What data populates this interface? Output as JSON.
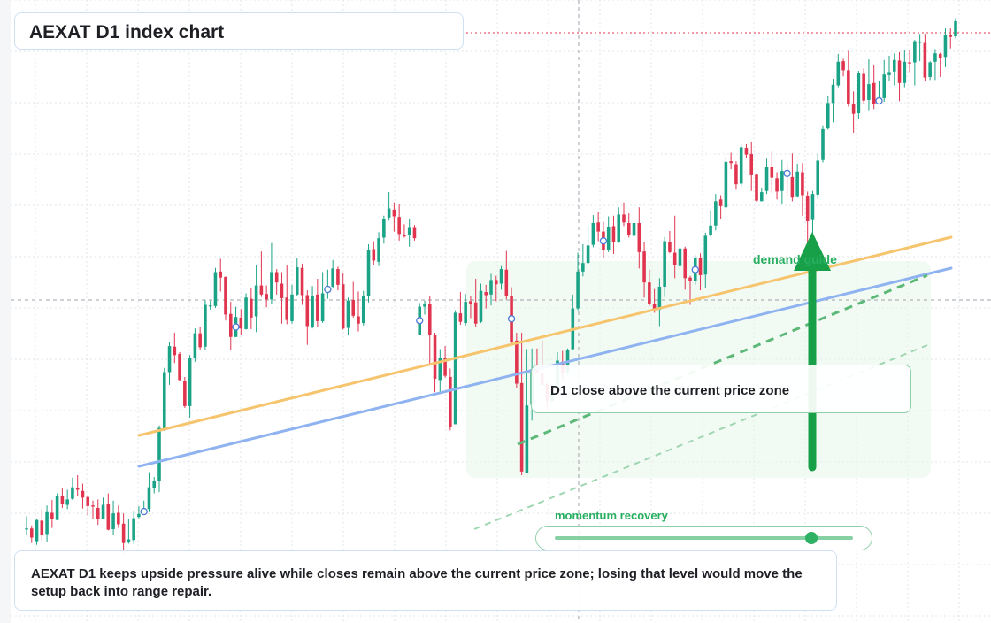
{
  "header": {
    "title": "AEXAT D1 index chart"
  },
  "annotations": {
    "callout": "D1 close above the current price zone",
    "zone_label": "demand guide",
    "momentum_label": "momentum recovery",
    "momentum_level": 0.86,
    "summary": "AEXAT D1 keeps upside pressure alive while closes remain above the current price zone; losing that level would move the setup back into range repair."
  },
  "colors": {
    "bull": "#1aa386",
    "bear": "#e0344f",
    "orange_line": "#f7c46e",
    "blue_line": "#8fb2f0",
    "green_accent": "#27ae60",
    "zone_fill": "#e9f7ec"
  },
  "chart_data": {
    "type": "candlestick",
    "title": "AEXAT D1 index chart",
    "timeframe": "D1",
    "grid": true,
    "ylim": [
      0,
      100
    ],
    "candles": [
      [
        15.0,
        15.0,
        17.0,
        14.0
      ],
      [
        15.0,
        13.5,
        15.5,
        12.6
      ],
      [
        12.9,
        16.4,
        16.6,
        12.3
      ],
      [
        16.3,
        14.0,
        18.2,
        13.0
      ],
      [
        14.1,
        17.7,
        18.8,
        12.8
      ],
      [
        17.6,
        16.5,
        19.7,
        15.1
      ],
      [
        16.4,
        20.3,
        20.8,
        16.4
      ],
      [
        20.4,
        19.0,
        21.6,
        18.4
      ],
      [
        18.9,
        19.8,
        21.4,
        18.2
      ],
      [
        19.9,
        21.8,
        23.4,
        19.7
      ],
      [
        21.7,
        21.4,
        23.8,
        20.4
      ],
      [
        21.2,
        20.1,
        22.4,
        18.3
      ],
      [
        20.2,
        18.7,
        20.5,
        17.1
      ],
      [
        18.8,
        18.6,
        19.6,
        16.5
      ],
      [
        18.4,
        16.6,
        19.8,
        15.6
      ],
      [
        16.6,
        18.9,
        20.1,
        16.6
      ],
      [
        19.1,
        14.8,
        20.8,
        14.7
      ],
      [
        14.9,
        17.5,
        19.6,
        14.0
      ],
      [
        17.6,
        15.7,
        18.8,
        15.1
      ],
      [
        15.8,
        12.6,
        17.5,
        10.7
      ],
      [
        12.7,
        13.2,
        16.5,
        12.5
      ],
      [
        13.1,
        16.7,
        17.9,
        12.5
      ],
      [
        16.9,
        17.4,
        18.7,
        16.7
      ],
      [
        17.3,
        18.3,
        19.6,
        17.3
      ],
      [
        18.2,
        21.8,
        24.3,
        17.7
      ],
      [
        21.7,
        22.8,
        23.5,
        20.8
      ],
      [
        22.9,
        31.6,
        32.0,
        21.0
      ],
      [
        31.5,
        40.8,
        41.5,
        31.1
      ],
      [
        40.8,
        45.1,
        45.7,
        38.7
      ],
      [
        45.0,
        43.6,
        47.3,
        42.3
      ],
      [
        43.8,
        39.5,
        44.1,
        39.3
      ],
      [
        39.3,
        35.2,
        40.0,
        34.9
      ],
      [
        35.2,
        43.2,
        43.6,
        33.3
      ],
      [
        43.1,
        47.2,
        48.0,
        42.5
      ],
      [
        47.2,
        44.9,
        48.2,
        44.5
      ],
      [
        45.0,
        51.9,
        52.7,
        44.5
      ],
      [
        51.8,
        51.8,
        52.6,
        51.1
      ],
      [
        51.7,
        57.3,
        58.0,
        51.4
      ],
      [
        57.4,
        56.4,
        59.5,
        54.1
      ],
      [
        56.5,
        50.3,
        56.6,
        49.3
      ],
      [
        50.4,
        46.6,
        52.4,
        44.5
      ],
      [
        46.6,
        49.9,
        51.6,
        46.6
      ],
      [
        49.8,
        48.0,
        51.2,
        47.0
      ],
      [
        47.9,
        53.1,
        53.8,
        47.8
      ],
      [
        52.9,
        49.8,
        54.6,
        47.9
      ],
      [
        50.0,
        55.1,
        58.5,
        47.4
      ],
      [
        55.1,
        53.6,
        60.7,
        53.2
      ],
      [
        53.7,
        52.8,
        55.1,
        51.5
      ],
      [
        52.8,
        57.3,
        62.1,
        52.1
      ],
      [
        57.3,
        55.6,
        57.8,
        53.6
      ],
      [
        55.4,
        53.0,
        57.3,
        48.8
      ],
      [
        53.1,
        49.4,
        58.4,
        48.7
      ],
      [
        49.2,
        53.6,
        55.2,
        48.8
      ],
      [
        53.6,
        58.1,
        59.6,
        53.4
      ],
      [
        58.0,
        53.5,
        58.7,
        51.9
      ],
      [
        53.5,
        48.4,
        54.3,
        45.3
      ],
      [
        48.3,
        53.4,
        55.0,
        48.0
      ],
      [
        53.6,
        49.2,
        56.2,
        48.2
      ],
      [
        49.2,
        53.8,
        57.3,
        48.9
      ],
      [
        53.9,
        55.0,
        57.7,
        52.9
      ],
      [
        54.9,
        57.9,
        59.3,
        54.6
      ],
      [
        57.8,
        55.2,
        58.2,
        54.3
      ],
      [
        55.3,
        48.0,
        57.1,
        47.8
      ],
      [
        48.1,
        52.6,
        53.1,
        47.0
      ],
      [
        52.7,
        50.1,
        55.7,
        49.8
      ],
      [
        50.0,
        48.8,
        54.1,
        47.5
      ],
      [
        48.9,
        53.3,
        54.2,
        48.5
      ],
      [
        53.4,
        60.9,
        61.9,
        52.3
      ],
      [
        61.1,
        59.2,
        62.4,
        58.5
      ],
      [
        59.0,
        62.9,
        63.9,
        58.3
      ],
      [
        63.0,
        66.1,
        66.6,
        62.0
      ],
      [
        66.3,
        67.8,
        70.5,
        65.8
      ],
      [
        67.6,
        66.5,
        68.8,
        64.0
      ],
      [
        66.4,
        63.6,
        68.6,
        62.5
      ],
      [
        63.5,
        63.2,
        65.2,
        63.0
      ],
      [
        63.5,
        64.6,
        66.1,
        61.5
      ],
      [
        64.6,
        62.9,
        65.1,
        62.5
      ],
      [
        47.0,
        51.6,
        52.2,
        46.9
      ],
      [
        51.6,
        52.1,
        52.6,
        50.3
      ],
      [
        52.0,
        47.0,
        53.4,
        42.0
      ],
      [
        46.9,
        39.7,
        47.3,
        37.5
      ],
      [
        39.5,
        43.1,
        44.6,
        37.2
      ],
      [
        43.2,
        40.2,
        45.1,
        39.9
      ],
      [
        40.0,
        31.8,
        41.4,
        31.2
      ],
      [
        32.2,
        50.6,
        51.0,
        32.6
      ],
      [
        50.5,
        49.1,
        54.0,
        48.6
      ],
      [
        48.9,
        52.4,
        53.7,
        48.5
      ],
      [
        52.5,
        52.0,
        53.4,
        49.7
      ],
      [
        52.3,
        48.8,
        56.2,
        48.2
      ],
      [
        49.1,
        54.2,
        55.4,
        48.9
      ],
      [
        54.0,
        53.5,
        55.2,
        51.3
      ],
      [
        53.6,
        56.0,
        57.0,
        51.8
      ],
      [
        56.0,
        55.3,
        56.7,
        52.5
      ],
      [
        55.4,
        57.8,
        58.3,
        54.4
      ],
      [
        57.7,
        53.4,
        60.8,
        52.8
      ],
      [
        53.4,
        45.8,
        54.8,
        45.5
      ],
      [
        46.0,
        38.9,
        47.3,
        38.1
      ],
      [
        39.0,
        24.4,
        47.3,
        23.8
      ],
      [
        24.2,
        35.3,
        44.6,
        24.3
      ],
      [
        35.4,
        41.3,
        44.7,
        32.8
      ],
      [
        41.2,
        40.8,
        44.7,
        40.6
      ],
      [
        40.7,
        38.7,
        46.0,
        37.0
      ],
      [
        38.8,
        36.0,
        39.2,
        34.5
      ],
      [
        36.0,
        37.4,
        38.9,
        36.0
      ],
      [
        37.4,
        42.7,
        44.1,
        37.3
      ],
      [
        42.5,
        40.7,
        44.3,
        39.4
      ],
      [
        40.8,
        44.5,
        44.7,
        40.4
      ],
      [
        44.6,
        51.3,
        53.6,
        44.4
      ],
      [
        51.3,
        57.4,
        60.5,
        51.0
      ],
      [
        57.4,
        58.8,
        61.9,
        56.6
      ],
      [
        58.8,
        61.7,
        65.1,
        58.7
      ],
      [
        61.8,
        65.4,
        66.7,
        61.4
      ],
      [
        65.5,
        64.0,
        67.3,
        62.4
      ],
      [
        64.0,
        60.9,
        65.6,
        59.6
      ],
      [
        60.9,
        64.8,
        66.5,
        60.6
      ],
      [
        64.9,
        62.3,
        66.6,
        60.3
      ],
      [
        62.2,
        66.8,
        68.0,
        62.1
      ],
      [
        66.8,
        65.5,
        68.8,
        64.9
      ],
      [
        65.4,
        63.4,
        67.0,
        63.0
      ],
      [
        63.3,
        65.4,
        66.0,
        63.0
      ],
      [
        65.4,
        60.6,
        68.0,
        57.9
      ],
      [
        60.7,
        55.6,
        62.3,
        53.1
      ],
      [
        55.6,
        52.1,
        57.7,
        51.7
      ],
      [
        52.1,
        51.1,
        54.5,
        50.6
      ],
      [
        51.1,
        54.9,
        56.3,
        48.4
      ],
      [
        54.9,
        62.4,
        63.1,
        53.2
      ],
      [
        62.3,
        60.6,
        64.1,
        60.4
      ],
      [
        60.5,
        58.4,
        66.6,
        56.3
      ],
      [
        58.3,
        61.2,
        61.9,
        57.6
      ],
      [
        61.2,
        56.3,
        61.5,
        54.4
      ],
      [
        56.4,
        55.8,
        56.7,
        51.9
      ],
      [
        55.8,
        59.6,
        60.1,
        55.2
      ],
      [
        59.7,
        56.8,
        60.4,
        54.3
      ],
      [
        56.9,
        63.3,
        63.8,
        54.6
      ],
      [
        63.4,
        65.0,
        67.5,
        63.2
      ],
      [
        65.0,
        69.0,
        70.2,
        64.2
      ],
      [
        69.3,
        68.2,
        70.0,
        66.0
      ],
      [
        68.0,
        75.5,
        76.3,
        67.7
      ],
      [
        75.6,
        75.3,
        77.0,
        74.3
      ],
      [
        75.1,
        71.8,
        75.6,
        70.9
      ],
      [
        71.9,
        77.9,
        78.3,
        71.4
      ],
      [
        77.8,
        76.7,
        78.4,
        76.1
      ],
      [
        76.8,
        73.3,
        78.8,
        70.7
      ],
      [
        73.4,
        69.1,
        73.4,
        68.9
      ],
      [
        69.0,
        70.5,
        71.1,
        69.3
      ],
      [
        70.7,
        74.6,
        76.0,
        70.2
      ],
      [
        74.6,
        72.9,
        77.2,
        70.4
      ],
      [
        72.8,
        70.6,
        73.8,
        69.3
      ],
      [
        70.7,
        74.0,
        75.8,
        68.6
      ],
      [
        74.0,
        73.2,
        75.1,
        69.8
      ],
      [
        73.0,
        69.6,
        76.9,
        69.0
      ],
      [
        69.7,
        73.9,
        75.2,
        69.6
      ],
      [
        73.8,
        70.0,
        75.3,
        66.6
      ],
      [
        69.9,
        65.7,
        70.6,
        61.8
      ],
      [
        65.9,
        70.2,
        70.7,
        63.0
      ],
      [
        70.1,
        75.7,
        76.8,
        69.4
      ],
      [
        75.8,
        80.9,
        81.5,
        75.4
      ],
      [
        81.0,
        85.2,
        86.4,
        80.8
      ],
      [
        85.2,
        88.2,
        89.2,
        82.0
      ],
      [
        88.1,
        92.0,
        93.3,
        87.8
      ],
      [
        92.1,
        90.6,
        92.5,
        89.6
      ],
      [
        90.6,
        85.0,
        93.8,
        84.6
      ],
      [
        85.1,
        83.4,
        87.1,
        80.3
      ],
      [
        83.5,
        90.1,
        90.5,
        82.5
      ],
      [
        90.0,
        85.6,
        90.9,
        85.1
      ],
      [
        85.7,
        88.3,
        92.4,
        84.0
      ],
      [
        88.5,
        85.1,
        91.5,
        84.2
      ],
      [
        85.2,
        85.9,
        88.8,
        85.0
      ],
      [
        86.0,
        89.9,
        92.3,
        85.4
      ],
      [
        89.8,
        90.3,
        93.0,
        88.9
      ],
      [
        90.4,
        92.3,
        93.4,
        88.1
      ],
      [
        92.2,
        88.5,
        93.6,
        85.5
      ],
      [
        88.5,
        92.0,
        93.9,
        87.8
      ],
      [
        91.9,
        91.8,
        93.9,
        90.3
      ],
      [
        91.9,
        95.4,
        95.6,
        88.1
      ],
      [
        95.3,
        95.3,
        96.6,
        92.1
      ],
      [
        95.1,
        89.4,
        96.6,
        88.8
      ],
      [
        89.5,
        91.9,
        92.1,
        89.0
      ],
      [
        92.0,
        93.4,
        94.1,
        89.0
      ],
      [
        93.3,
        92.7,
        93.5,
        89.5
      ],
      [
        92.8,
        96.5,
        97.5,
        91.1
      ],
      [
        96.4,
        96.1,
        97.5,
        94.2
      ],
      [
        96.2,
        98.7,
        99.2,
        95.9
      ]
    ],
    "lines": [
      {
        "name": "orange",
        "from": [
          0,
          35.0
        ],
        "to": [
          1,
          78.0
        ]
      },
      {
        "name": "blue",
        "from": [
          0,
          29.0
        ],
        "to": [
          1,
          71.0
        ]
      }
    ]
  }
}
